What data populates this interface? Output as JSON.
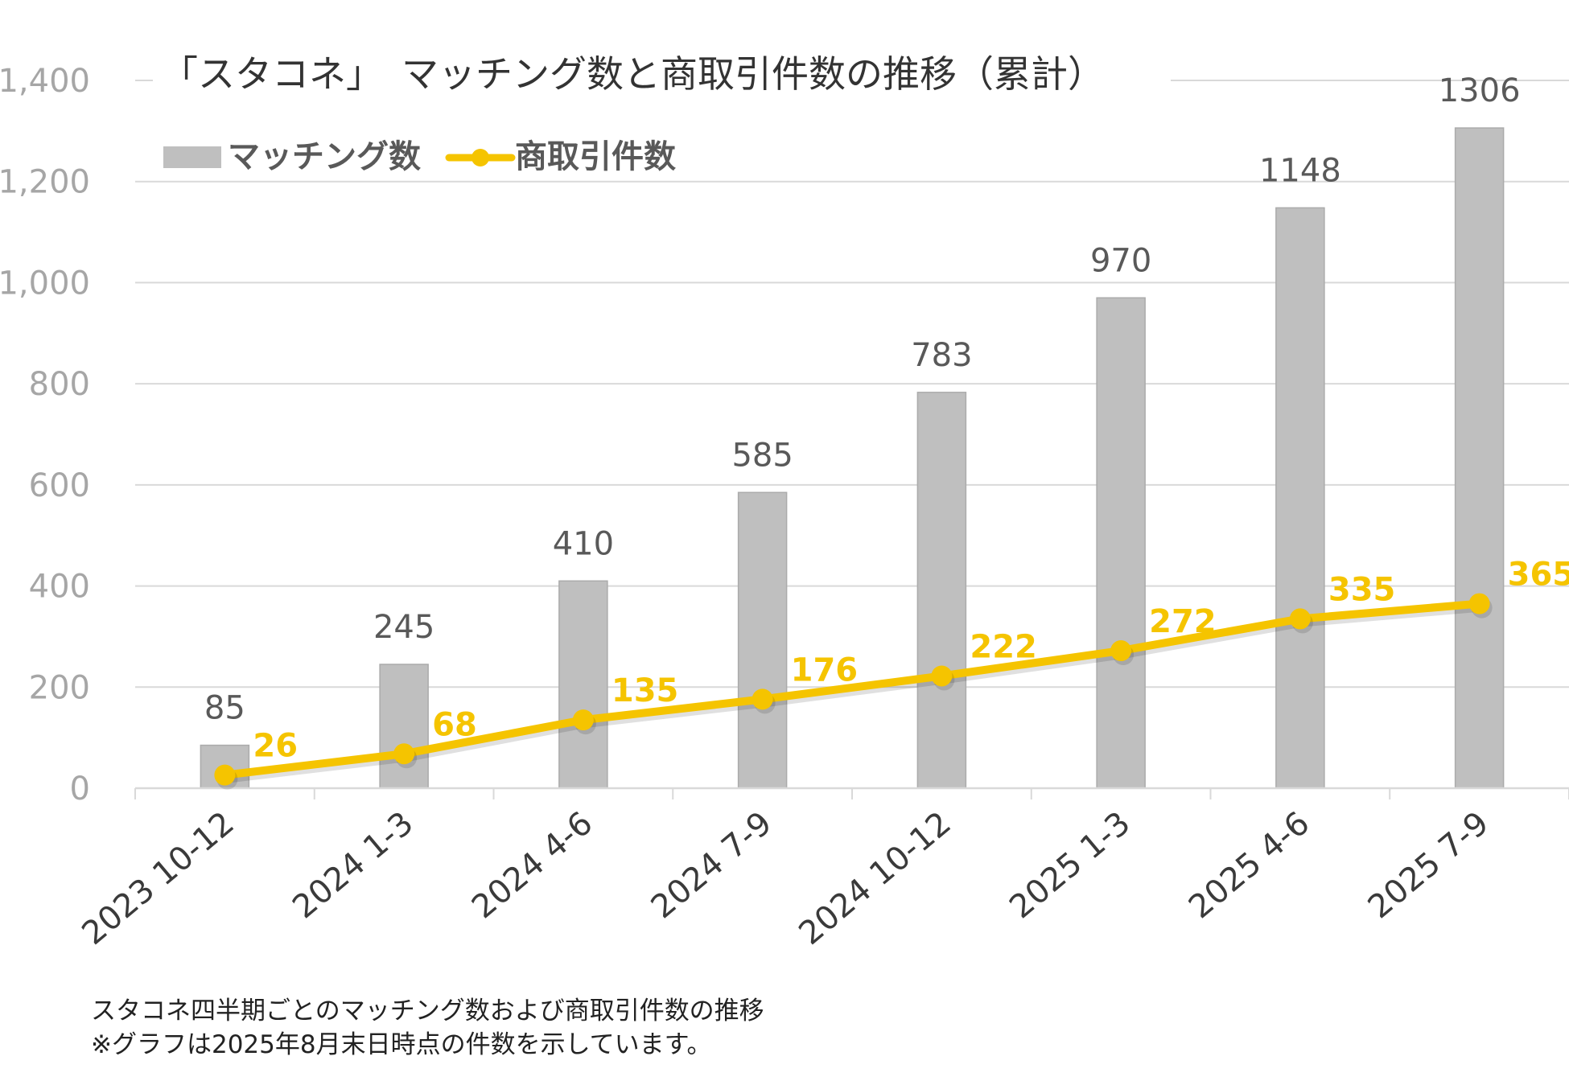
{
  "chart_data": {
    "type": "bar",
    "title": "「スタコネ」　マッチング数と商取引件数の推移（累計）",
    "categories": [
      "2023 10-12",
      "2024 1-3",
      "2024 4-6",
      "2024 7-9",
      "2024 10-12",
      "2025 1-3",
      "2025 4-6",
      "2025 7-9"
    ],
    "series": [
      {
        "name": "マッチング数",
        "kind": "bar",
        "color": "#bfbfbf",
        "values": [
          85,
          245,
          410,
          585,
          783,
          970,
          1148,
          1306
        ]
      },
      {
        "name": "商取引件数",
        "kind": "line",
        "color": "#f5c400",
        "values": [
          26,
          68,
          135,
          176,
          222,
          272,
          335,
          365
        ]
      }
    ],
    "ylim": [
      0,
      1400
    ],
    "yticks": [
      0,
      200,
      400,
      600,
      800,
      1000,
      1200,
      1400
    ],
    "ytick_labels": [
      "0",
      "200",
      "400",
      "600",
      "800",
      "1,000",
      "1,200",
      "1,400"
    ],
    "xlabel": "",
    "ylabel": "",
    "grid": true,
    "legend_position": "top-left"
  },
  "footnote": {
    "line1": "スタコネ四半期ごとのマッチング数および商取引件数の推移",
    "line2": "※グラフは2025年8月末日時点の件数を示しています。"
  }
}
